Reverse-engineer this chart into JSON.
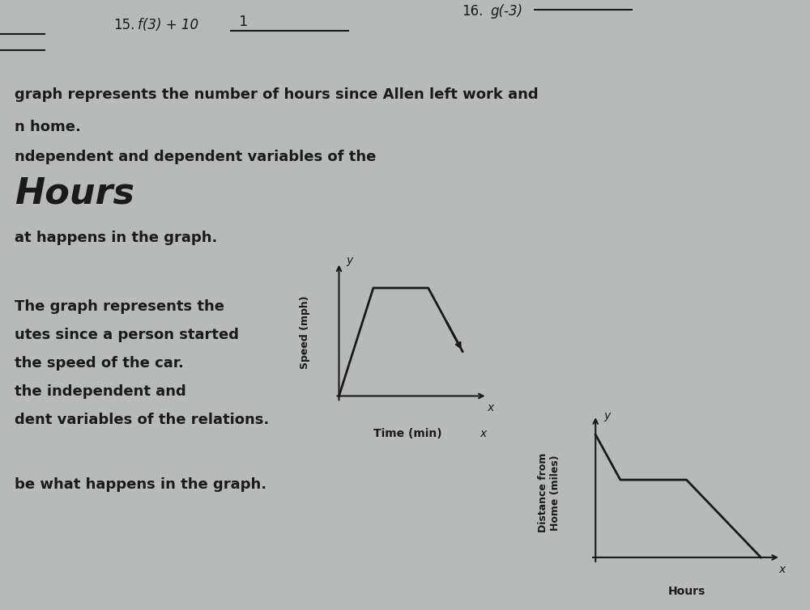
{
  "bg_color": "#b8baba",
  "text_color": "#1a1a1a",
  "graph1_ylabel": "Distance from\nHome (miles)",
  "graph1_xlabel": "Hours",
  "graph2_ylabel": "Speed (mph)",
  "graph2_xlabel": "Time (min)"
}
